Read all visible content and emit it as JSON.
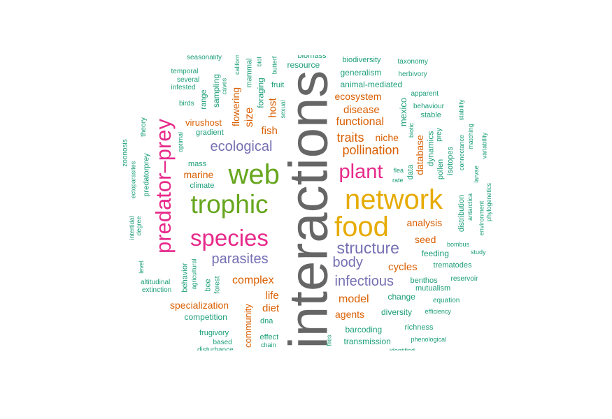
{
  "colors": {
    "teal": "#1b9e77",
    "orange": "#d95f02",
    "purple": "#7570b3",
    "magenta": "#e7298a",
    "green": "#66a61e",
    "gold": "#e6ab02",
    "gray": "#666666"
  },
  "words": [
    {
      "text": "interactions",
      "color": "gray"
    },
    {
      "text": "network",
      "color": "gold"
    },
    {
      "text": "food",
      "color": "gold"
    },
    {
      "text": "web",
      "color": "green"
    },
    {
      "text": "trophic",
      "color": "green"
    },
    {
      "text": "predator–prey",
      "color": "magenta"
    },
    {
      "text": "species",
      "color": "magenta"
    },
    {
      "text": "plant",
      "color": "magenta"
    },
    {
      "text": "structure",
      "color": "purple"
    },
    {
      "text": "ecological",
      "color": "purple"
    },
    {
      "text": "parasites",
      "color": "purple"
    },
    {
      "text": "infectious",
      "color": "purple"
    },
    {
      "text": "body",
      "color": "purple"
    },
    {
      "text": "traits",
      "color": "orange"
    },
    {
      "text": "pollination",
      "color": "orange"
    },
    {
      "text": "functional",
      "color": "orange"
    },
    {
      "text": "disease",
      "color": "orange"
    },
    {
      "text": "ecosystem",
      "color": "orange"
    },
    {
      "text": "niche",
      "color": "orange"
    },
    {
      "text": "analysis",
      "color": "orange"
    },
    {
      "text": "seed",
      "color": "orange"
    },
    {
      "text": "cycles",
      "color": "orange"
    },
    {
      "text": "model",
      "color": "orange"
    },
    {
      "text": "agents",
      "color": "orange"
    },
    {
      "text": "complex",
      "color": "orange"
    },
    {
      "text": "life",
      "color": "orange"
    },
    {
      "text": "diet",
      "color": "orange"
    },
    {
      "text": "specialization",
      "color": "orange"
    },
    {
      "text": "marine",
      "color": "orange"
    },
    {
      "text": "virushost",
      "color": "orange"
    },
    {
      "text": "fish",
      "color": "orange"
    },
    {
      "text": "host",
      "color": "orange"
    },
    {
      "text": "size",
      "color": "orange"
    },
    {
      "text": "flowering",
      "color": "orange"
    },
    {
      "text": "database",
      "color": "orange"
    },
    {
      "text": "community",
      "color": "orange"
    },
    {
      "text": "resource",
      "color": "teal"
    },
    {
      "text": "biomass",
      "color": "teal"
    },
    {
      "text": "biodiversity",
      "color": "teal"
    },
    {
      "text": "taxonomy",
      "color": "teal"
    },
    {
      "text": "generalism",
      "color": "teal"
    },
    {
      "text": "herbivory",
      "color": "teal"
    },
    {
      "text": "animal-mediated",
      "color": "teal"
    },
    {
      "text": "apparent",
      "color": "teal"
    },
    {
      "text": "behaviour",
      "color": "teal"
    },
    {
      "text": "stable",
      "color": "teal"
    },
    {
      "text": "seasonality",
      "color": "teal"
    },
    {
      "text": "temporal",
      "color": "teal"
    },
    {
      "text": "several",
      "color": "teal"
    },
    {
      "text": "infested",
      "color": "teal"
    },
    {
      "text": "birds",
      "color": "teal"
    },
    {
      "text": "gradient",
      "color": "teal"
    },
    {
      "text": "mass",
      "color": "teal"
    },
    {
      "text": "climate",
      "color": "teal"
    },
    {
      "text": "fruit",
      "color": "teal"
    },
    {
      "text": "feeding",
      "color": "teal"
    },
    {
      "text": "trematodes",
      "color": "teal"
    },
    {
      "text": "benthos",
      "color": "teal"
    },
    {
      "text": "mutualism",
      "color": "teal"
    },
    {
      "text": "reservoir",
      "color": "teal"
    },
    {
      "text": "change",
      "color": "teal"
    },
    {
      "text": "equation",
      "color": "teal"
    },
    {
      "text": "diversity",
      "color": "teal"
    },
    {
      "text": "efficiency",
      "color": "teal"
    },
    {
      "text": "barcoding",
      "color": "teal"
    },
    {
      "text": "richness",
      "color": "teal"
    },
    {
      "text": "transmission",
      "color": "teal"
    },
    {
      "text": "phenological",
      "color": "teal"
    },
    {
      "text": "identified",
      "color": "teal"
    },
    {
      "text": "competition",
      "color": "teal"
    },
    {
      "text": "frugivory",
      "color": "teal"
    },
    {
      "text": "based",
      "color": "teal"
    },
    {
      "text": "disturbance",
      "color": "teal"
    },
    {
      "text": "dna",
      "color": "teal"
    },
    {
      "text": "effect",
      "color": "teal"
    },
    {
      "text": "chain",
      "color": "teal"
    },
    {
      "text": "altitudinal",
      "color": "teal"
    },
    {
      "text": "extinction",
      "color": "teal"
    },
    {
      "text": "flea",
      "color": "teal"
    },
    {
      "text": "rate",
      "color": "teal"
    },
    {
      "text": "bombus",
      "color": "teal"
    },
    {
      "text": "study",
      "color": "teal"
    },
    {
      "text": "range",
      "color": "teal"
    },
    {
      "text": "sampling",
      "color": "teal"
    },
    {
      "text": "caves",
      "color": "teal"
    },
    {
      "text": "californ",
      "color": "teal"
    },
    {
      "text": "mammal",
      "color": "teal"
    },
    {
      "text": "biol",
      "color": "teal"
    },
    {
      "text": "foraging",
      "color": "teal"
    },
    {
      "text": "butterf",
      "color": "teal"
    },
    {
      "text": "sexual",
      "color": "teal"
    },
    {
      "text": "theory",
      "color": "teal"
    },
    {
      "text": "zoonosis",
      "color": "teal"
    },
    {
      "text": "optimal",
      "color": "teal"
    },
    {
      "text": "ectoparasites",
      "color": "teal"
    },
    {
      "text": "predatorprey",
      "color": "teal"
    },
    {
      "text": "intertidal",
      "color": "teal"
    },
    {
      "text": "degree",
      "color": "teal"
    },
    {
      "text": "level",
      "color": "teal"
    },
    {
      "text": "behavior",
      "color": "teal"
    },
    {
      "text": "agricultural",
      "color": "teal"
    },
    {
      "text": "bee",
      "color": "teal"
    },
    {
      "text": "forest",
      "color": "teal"
    },
    {
      "text": "mexico",
      "color": "teal"
    },
    {
      "text": "biotic",
      "color": "teal"
    },
    {
      "text": "data",
      "color": "teal"
    },
    {
      "text": "dynamics",
      "color": "teal"
    },
    {
      "text": "pollen",
      "color": "teal"
    },
    {
      "text": "isotopes",
      "color": "teal"
    },
    {
      "text": "prey",
      "color": "teal"
    },
    {
      "text": "stability",
      "color": "teal"
    },
    {
      "text": "connectance",
      "color": "teal"
    },
    {
      "text": "matching",
      "color": "teal"
    },
    {
      "text": "variability",
      "color": "teal"
    },
    {
      "text": "larvae",
      "color": "teal"
    },
    {
      "text": "distribution",
      "color": "teal"
    },
    {
      "text": "antarctica",
      "color": "teal"
    },
    {
      "text": "environment",
      "color": "teal"
    },
    {
      "text": "phylogenetics",
      "color": "teal"
    },
    {
      "text": "flies",
      "color": "teal"
    }
  ]
}
